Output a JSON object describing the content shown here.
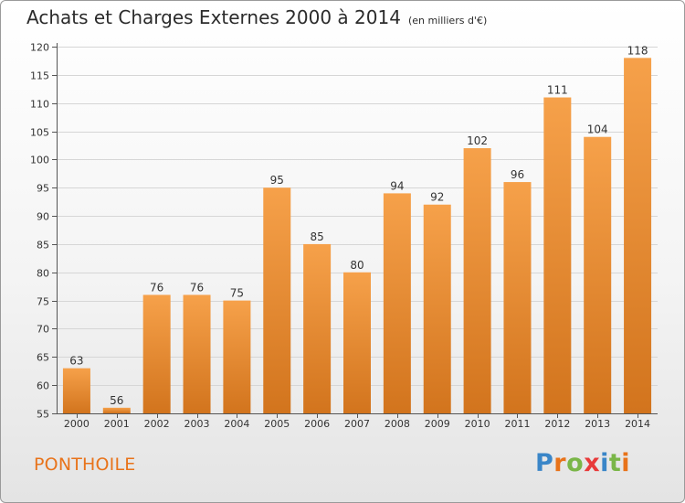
{
  "header": {
    "title": "Achats et Charges Externes 2000 à 2014",
    "unit": "(en milliers d'€)"
  },
  "footer": {
    "commune": "PONTHOILE",
    "logo": {
      "letters": [
        "P",
        "r",
        "o",
        "x",
        "i",
        "t",
        "i"
      ],
      "colors": [
        "#3a86c8",
        "#e8731a",
        "#7ab648",
        "#e83a3a",
        "#3a86c8",
        "#7ab648",
        "#e8731a"
      ]
    }
  },
  "colors": {
    "bar_top": "#f6a14a",
    "bar_bottom": "#d2741d",
    "grid": "#d6d6d6",
    "text": "#333333",
    "axis": "#555555"
  },
  "chart_data": {
    "type": "bar",
    "title": "Achats et Charges Externes 2000 à 2014",
    "categories": [
      "2000",
      "2001",
      "2002",
      "2003",
      "2004",
      "2005",
      "2006",
      "2007",
      "2008",
      "2009",
      "2010",
      "2011",
      "2012",
      "2013",
      "2014"
    ],
    "values": [
      63,
      56,
      76,
      76,
      75,
      95,
      85,
      80,
      94,
      92,
      102,
      96,
      111,
      104,
      118
    ],
    "data_labels": [
      "63",
      "56",
      "76",
      "76",
      "75",
      "95",
      "85",
      "80",
      "94",
      "92",
      "102",
      "96",
      "111",
      "104",
      "118"
    ],
    "yticks": [
      55,
      60,
      65,
      70,
      75,
      80,
      85,
      90,
      95,
      100,
      105,
      110,
      115,
      120
    ],
    "ytick_labels": [
      "55",
      "60",
      "65",
      "70",
      "75",
      "80",
      "85",
      "90",
      "95",
      "100",
      "105",
      "110",
      "115",
      "120"
    ],
    "ylim": [
      55,
      120
    ],
    "xlabel": "",
    "ylabel": "",
    "grid": true,
    "legend": "none"
  }
}
